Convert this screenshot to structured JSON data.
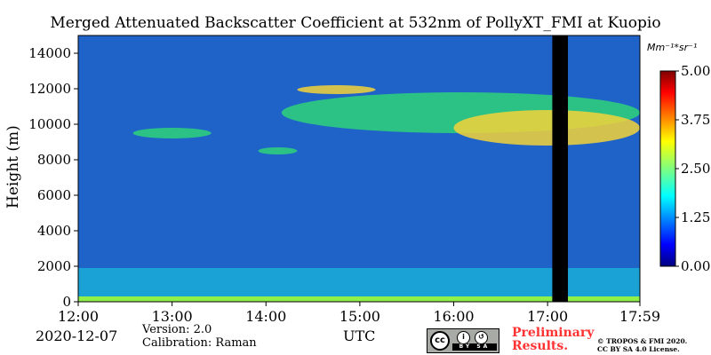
{
  "chart_data": {
    "type": "heatmap",
    "title": "Merged Attenuated Backscatter Coefficient at 532nm of PollyXT_FMI at Kuopio",
    "ylabel": "Height (m)",
    "xlabel": "UTC",
    "x_ticks": [
      "12:00",
      "13:00",
      "14:00",
      "15:00",
      "16:00",
      "17:00",
      "17:59"
    ],
    "y_ticks": [
      "0",
      "2000",
      "4000",
      "6000",
      "8000",
      "10000",
      "12000",
      "14000"
    ],
    "ylim": [
      0,
      15000
    ],
    "xlim": [
      "12:00",
      "17:59"
    ],
    "colorbar": {
      "unit": "Mm⁻¹*sr⁻¹",
      "ticks": [
        "0.00",
        "1.25",
        "2.50",
        "3.75",
        "5.00"
      ],
      "range": [
        0,
        5
      ],
      "colormap": "jet"
    },
    "features": [
      {
        "kind": "cloud_layer",
        "time_start": "12:35",
        "time_end": "13:25",
        "height_bottom": 9200,
        "height_top": 9800,
        "level": "medium"
      },
      {
        "kind": "cloud_layer",
        "time_start": "13:55",
        "time_end": "14:20",
        "height_bottom": 8300,
        "height_top": 8700,
        "level": "medium"
      },
      {
        "kind": "cloud_layer",
        "time_start": "14:10",
        "time_end": "17:59",
        "height_bottom": 9500,
        "height_top": 11800,
        "level": "medium"
      },
      {
        "kind": "cloud_layer",
        "time_start": "14:20",
        "time_end": "15:10",
        "height_bottom": 11700,
        "height_top": 12200,
        "level": "high"
      },
      {
        "kind": "cloud_layer",
        "time_start": "16:00",
        "time_end": "17:59",
        "height_bottom": 8800,
        "height_top": 10800,
        "level": "high"
      },
      {
        "kind": "boundary_layer",
        "time_start": "12:00",
        "time_end": "17:59",
        "height_bottom": 0,
        "height_top": 1900,
        "level": "medium"
      },
      {
        "kind": "data_gap",
        "time_start": "17:03",
        "time_end": "17:13",
        "height_bottom": 0,
        "height_top": 15000
      }
    ]
  },
  "footer": {
    "date": "2020-12-07",
    "version": "Version: 2.0",
    "calibration": "Calibration: Raman",
    "xunit": "UTC",
    "preliminary_line1": "Preliminary",
    "preliminary_line2": "Results.",
    "copyright_line1": "© TROPOS & FMI 2020.",
    "copyright_line2": "CC BY SA 4.0 License.",
    "license_badge": [
      "cc",
      "BY",
      "SA"
    ]
  },
  "colors": {
    "prelim": "#ff3333"
  }
}
